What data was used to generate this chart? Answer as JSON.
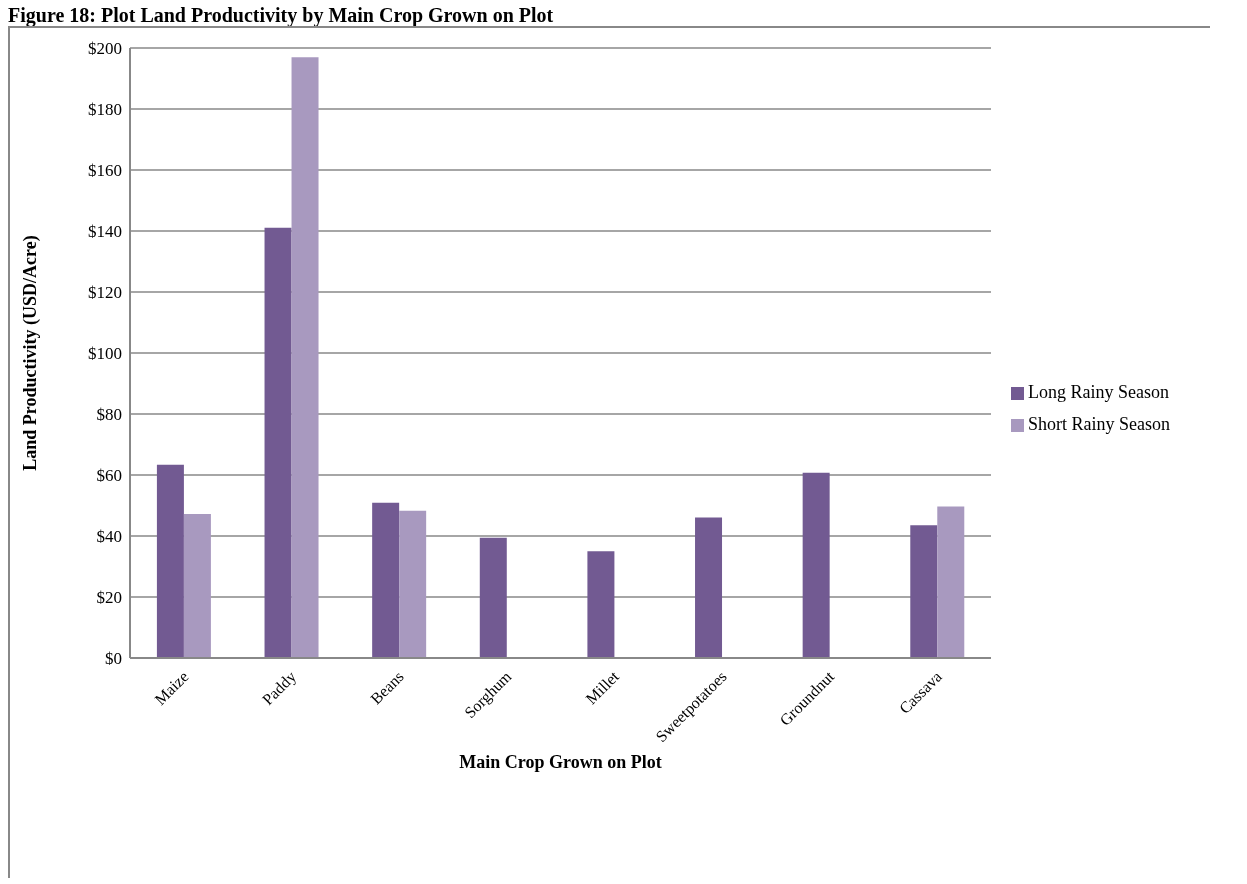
{
  "chart_data": {
    "type": "bar",
    "title": "Figure 18: Plot Land Productivity by Main Crop Grown on Plot",
    "xlabel": "Main Crop Grown on Plot",
    "ylabel": "Land Productivity (USD/Acre)",
    "categories": [
      "Maize",
      "Paddy",
      "Beans",
      "Sorghum",
      "Millet",
      "Sweetpotatoes",
      "Groundnut",
      "Cassava"
    ],
    "series": [
      {
        "name": "Long Rainy Season",
        "color": "#725a92",
        "values": [
          63.4,
          141.1,
          50.9,
          39.4,
          35.0,
          46.1,
          60.7,
          43.5
        ]
      },
      {
        "name": "Short Rainy Season",
        "color": "#a899bf",
        "values": [
          47.2,
          197,
          48.3,
          null,
          null,
          null,
          null,
          49.7
        ]
      }
    ],
    "ylim": [
      0,
      200
    ],
    "yticks": [
      {
        "value": 0,
        "label": "$0"
      },
      {
        "value": 20,
        "label": "$20"
      },
      {
        "value": 40,
        "label": "$40"
      },
      {
        "value": 60,
        "label": "$60"
      },
      {
        "value": 80,
        "label": "$80"
      },
      {
        "value": 100,
        "label": "$100"
      },
      {
        "value": 120,
        "label": "$120"
      },
      {
        "value": 140,
        "label": "$140"
      },
      {
        "value": 160,
        "label": "$160"
      },
      {
        "value": 180,
        "label": "$180"
      },
      {
        "value": 200,
        "label": "$200"
      }
    ],
    "grid": "y",
    "legend": "right"
  }
}
